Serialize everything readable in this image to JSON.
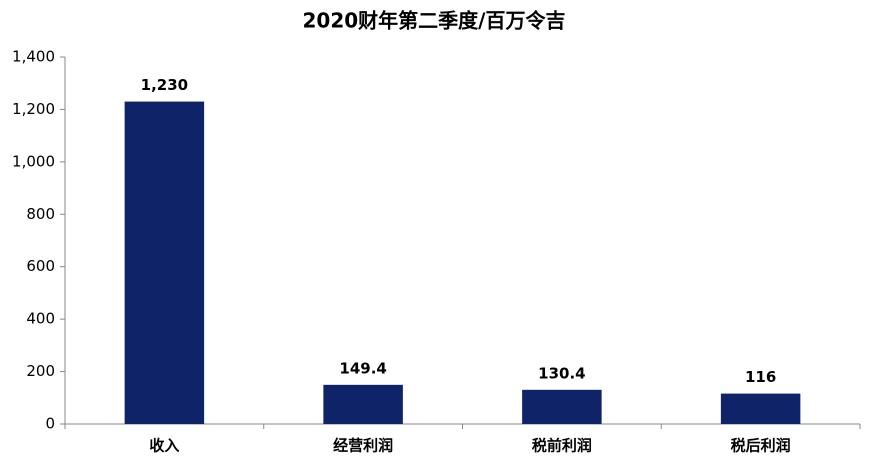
{
  "chart_data": {
    "type": "bar",
    "title": "2020财年第二季度/百万令吉",
    "categories": [
      "收入",
      "经营利润",
      "税前利润",
      "税后利润"
    ],
    "values": [
      1230,
      149.4,
      130.4,
      116
    ],
    "value_labels": [
      "1,230",
      "149.4",
      "130.4",
      "116"
    ],
    "color": "#0f2468",
    "ylim": [
      0,
      1400
    ],
    "yticks": [
      0,
      200,
      400,
      600,
      800,
      {
        "value": 1000,
        "label": "1,000"
      },
      {
        "value": 1200,
        "label": "1,200"
      },
      {
        "value": 1400,
        "label": "1,400"
      }
    ],
    "grid": false
  }
}
